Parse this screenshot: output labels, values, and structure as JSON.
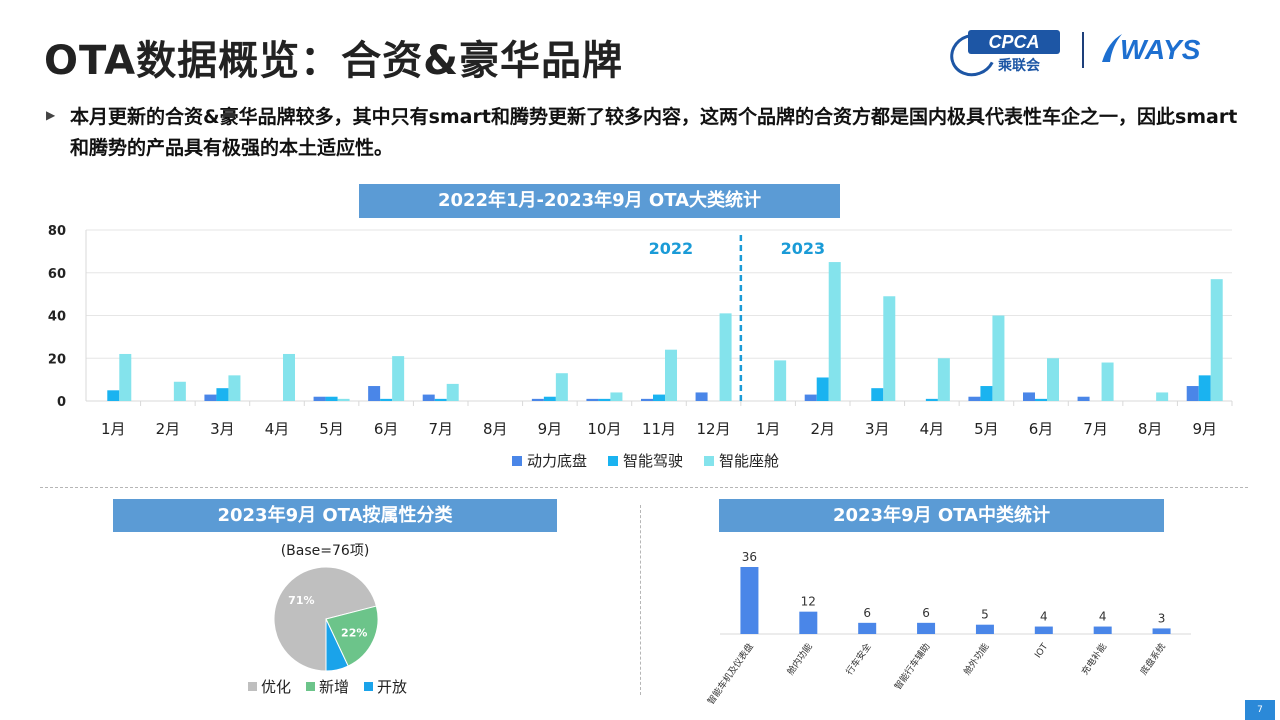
{
  "header": {
    "title": "OTA数据概览：合资&豪华品牌",
    "logo_cpca": "CPCA",
    "logo_cpca_sub": "乘联会",
    "logo_ways": "WAYS"
  },
  "summary": "本月更新的合资&豪华品牌较多，其中只有smart和腾势更新了较多内容，这两个品牌的合资方都是国内极具代表性车企之一，因此smart和腾势的产品具有极强的本土适应性。",
  "page_number": "7",
  "chart_data": [
    {
      "type": "bar",
      "title": "2022年1月-2023年9月 OTA大类统计",
      "categories": [
        "1月",
        "2月",
        "3月",
        "4月",
        "5月",
        "6月",
        "7月",
        "8月",
        "9月",
        "10月",
        "11月",
        "12月",
        "1月",
        "2月",
        "3月",
        "4月",
        "5月",
        "6月",
        "7月",
        "8月",
        "9月"
      ],
      "series": [
        {
          "name": "动力底盘",
          "color": "#4a86e8",
          "values": [
            0,
            0,
            3,
            0,
            2,
            7,
            3,
            0,
            1,
            1,
            1,
            4,
            0,
            3,
            0,
            0,
            2,
            4,
            2,
            0,
            7
          ]
        },
        {
          "name": "智能驾驶",
          "color": "#1ab3f0",
          "values": [
            5,
            0,
            6,
            0,
            2,
            1,
            1,
            0,
            2,
            1,
            3,
            0,
            0,
            11,
            6,
            1,
            7,
            1,
            0,
            0,
            12
          ]
        },
        {
          "name": "智能座舱",
          "color": "#84e3ec",
          "values": [
            22,
            9,
            12,
            22,
            1,
            21,
            8,
            0,
            13,
            4,
            24,
            41,
            19,
            65,
            49,
            20,
            40,
            20,
            18,
            4,
            57
          ]
        }
      ],
      "ylim": [
        0,
        80
      ],
      "yticks": [
        0,
        20,
        40,
        60,
        80
      ],
      "grid": true,
      "legend": "bottom",
      "annotations": [
        "2022",
        "2023"
      ]
    },
    {
      "type": "pie",
      "title": "2023年9月 OTA按属性分类",
      "subtitle": "(Base=76项)",
      "slices": [
        {
          "name": "优化",
          "value": 71,
          "label": "71%",
          "color": "#bfbfbf"
        },
        {
          "name": "新增",
          "value": 22,
          "label": "22%",
          "color": "#6cc48a"
        },
        {
          "name": "开放",
          "value": 7,
          "label": "",
          "color": "#1aa3ea"
        }
      ],
      "legend": "bottom"
    },
    {
      "type": "bar",
      "title": "2023年9月 OTA中类统计",
      "categories": [
        "智能车机及仪表盘",
        "舱内功能",
        "行车安全",
        "智能行车辅助",
        "舱外功能",
        "IOT",
        "充电补能",
        "底盘系统"
      ],
      "values": [
        36,
        12,
        6,
        6,
        5,
        4,
        4,
        3
      ],
      "color": "#4a86e8"
    }
  ]
}
